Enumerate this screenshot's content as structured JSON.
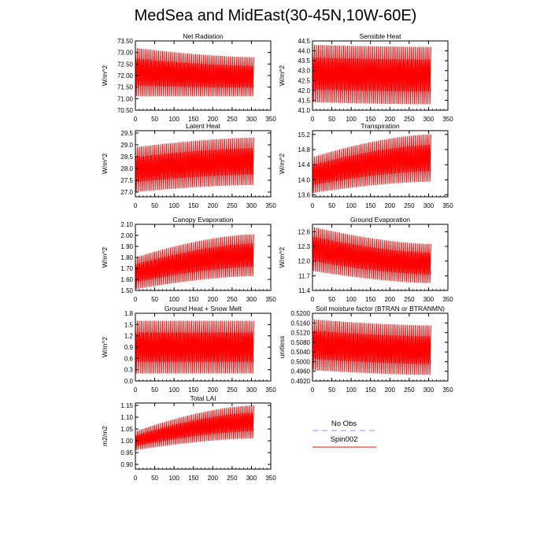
{
  "page_title": "MedSea and MidEast(30-45N,10W-60E)",
  "legend": {
    "obs_label": "No Obs",
    "obs_color": "#9fa8e8",
    "model_label": "Spin002",
    "model_color": "#ff0000"
  },
  "chart_data": [
    {
      "type": "line",
      "title": "Net Radiation",
      "ylabel": "W/m^2",
      "xlim": [
        0,
        350
      ],
      "ylim": [
        70.5,
        73.5
      ],
      "xticks": [
        "0",
        "50",
        "100",
        "150",
        "200",
        "250",
        "300",
        "350"
      ],
      "yticks": [
        "70.50",
        "71.00",
        "71.50",
        "72.00",
        "72.50",
        "73.00",
        "73.50"
      ],
      "series": [
        {
          "name": "Spin002",
          "x_end": 306,
          "low_start": 71.1,
          "low_end": 71.1,
          "high_start": 73.2,
          "high_end": 72.8
        }
      ]
    },
    {
      "type": "line",
      "title": "Sensible Heat",
      "ylabel": "W/m^2",
      "xlim": [
        0,
        350
      ],
      "ylim": [
        41.0,
        44.5
      ],
      "xticks": [
        "0",
        "50",
        "100",
        "150",
        "200",
        "250",
        "300",
        "350"
      ],
      "yticks": [
        "41.0",
        "41.5",
        "42.0",
        "42.5",
        "43.0",
        "43.5",
        "44.0",
        "44.5"
      ],
      "series": [
        {
          "name": "Spin002",
          "x_end": 306,
          "low_start": 41.4,
          "low_end": 41.3,
          "high_start": 44.3,
          "high_end": 44.2
        }
      ]
    },
    {
      "type": "line",
      "title": "Latent Heat",
      "ylabel": "W/m^2",
      "xlim": [
        0,
        350
      ],
      "ylim": [
        26.8,
        29.6
      ],
      "xticks": [
        "0",
        "50",
        "100",
        "150",
        "200",
        "250",
        "300",
        "350"
      ],
      "yticks": [
        "27.0",
        "27.5",
        "28.0",
        "28.5",
        "29.0",
        "29.5"
      ],
      "series": [
        {
          "name": "Spin002",
          "x_end": 306,
          "low_start": 27.0,
          "low_end": 27.3,
          "high_start": 28.9,
          "high_end": 29.3
        }
      ]
    },
    {
      "type": "line",
      "title": "Transpiration",
      "ylabel": "W/m^2",
      "xlim": [
        0,
        350
      ],
      "ylim": [
        13.55,
        15.3
      ],
      "xticks": [
        "0",
        "50",
        "100",
        "150",
        "200",
        "250",
        "300",
        "350"
      ],
      "yticks": [
        "13.6",
        "14.0",
        "14.4",
        "14.8",
        "15.2"
      ],
      "series": [
        {
          "name": "Spin002",
          "x_end": 306,
          "low_start": 13.65,
          "low_end": 13.95,
          "high_start": 14.6,
          "high_end": 15.2
        }
      ]
    },
    {
      "type": "line",
      "title": "Canopy Evaporation",
      "ylabel": "W/m^2",
      "xlim": [
        0,
        350
      ],
      "ylim": [
        1.5,
        2.1
      ],
      "xticks": [
        "0",
        "50",
        "100",
        "150",
        "200",
        "250",
        "300",
        "350"
      ],
      "yticks": [
        "1.50",
        "1.60",
        "1.70",
        "1.80",
        "1.90",
        "2.00",
        "2.10"
      ],
      "series": [
        {
          "name": "Spin002",
          "x_end": 306,
          "low_start": 1.51,
          "low_end": 1.63,
          "high_start": 1.8,
          "high_end": 2.01
        }
      ]
    },
    {
      "type": "line",
      "title": "Ground Evaporation",
      "ylabel": "W/m^2",
      "xlim": [
        0,
        350
      ],
      "ylim": [
        11.4,
        12.75
      ],
      "xticks": [
        "0",
        "50",
        "100",
        "150",
        "200",
        "250",
        "300",
        "350"
      ],
      "yticks": [
        "11.4",
        "11.7",
        "12.0",
        "12.3",
        "12.6"
      ],
      "series": [
        {
          "name": "Spin002",
          "x_end": 306,
          "low_start": 11.8,
          "low_end": 11.55,
          "high_start": 12.7,
          "high_end": 12.35
        }
      ]
    },
    {
      "type": "line",
      "title": "Ground Heat + Snow Melt",
      "ylabel": "W/m^2",
      "xlim": [
        0,
        350
      ],
      "ylim": [
        0.0,
        1.8
      ],
      "xticks": [
        "0",
        "50",
        "100",
        "150",
        "200",
        "250",
        "300",
        "350"
      ],
      "yticks": [
        "0.0",
        "0.3",
        "0.6",
        "0.9",
        "1.2",
        "1.5",
        "1.8"
      ],
      "series": [
        {
          "name": "Spin002",
          "x_end": 306,
          "low_start": 0.2,
          "low_end": 0.2,
          "high_start": 1.6,
          "high_end": 1.6
        }
      ]
    },
    {
      "type": "line",
      "title": "Soil moisture factor (BTRAN or BTRANMN)",
      "ylabel": "unitless",
      "xlim": [
        0,
        350
      ],
      "ylim": [
        0.492,
        0.52
      ],
      "xticks": [
        "0",
        "50",
        "100",
        "150",
        "200",
        "250",
        "300",
        "350"
      ],
      "yticks": [
        "0.4920",
        "0.4960",
        "0.5000",
        "0.5040",
        "0.5080",
        "0.5120",
        "0.5160",
        "0.5200"
      ],
      "series": [
        {
          "name": "Spin002",
          "x_end": 306,
          "low_start": 0.4965,
          "low_end": 0.4945,
          "high_start": 0.5175,
          "high_end": 0.515
        }
      ]
    },
    {
      "type": "line",
      "title": "Total LAI",
      "ylabel": "m2/m2",
      "xlim": [
        0,
        350
      ],
      "ylim": [
        0.88,
        1.16
      ],
      "xticks": [
        "0",
        "50",
        "100",
        "150",
        "200",
        "250",
        "300",
        "350"
      ],
      "yticks": [
        "0.90",
        "0.95",
        "1.00",
        "1.05",
        "1.10",
        "1.15"
      ],
      "series": [
        {
          "name": "Spin002",
          "x_end": 306,
          "low_start": 0.96,
          "low_end": 1.01,
          "high_start": 1.04,
          "high_end": 1.15
        }
      ]
    }
  ]
}
